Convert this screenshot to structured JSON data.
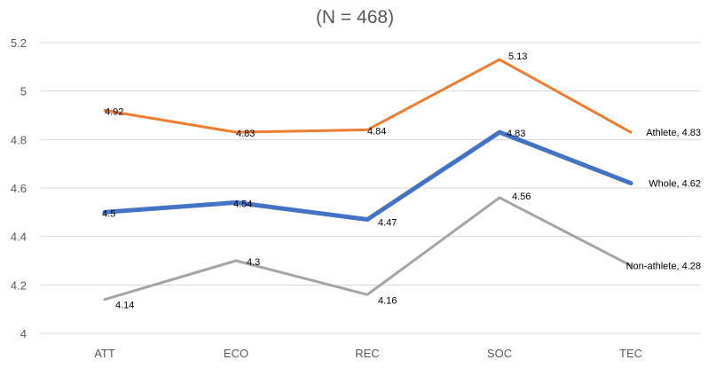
{
  "chart_data": {
    "type": "line",
    "title": "(N = 468)",
    "categories": [
      "ATT",
      "ECO",
      "REC",
      "SOC",
      "TEC"
    ],
    "ylim": [
      4,
      5.2
    ],
    "yticks": [
      4,
      4.2,
      4.4,
      4.6,
      4.8,
      5,
      5.2
    ],
    "ytick_labels": [
      "4",
      "4.2",
      "4.4",
      "4.6",
      "4.8",
      "5",
      "5.2"
    ],
    "grid": true,
    "xlabel": "",
    "ylabel": "",
    "series": [
      {
        "name": "Athlete",
        "color": "#ED7D31",
        "values": [
          4.92,
          4.83,
          4.84,
          5.13,
          4.83
        ],
        "labels": [
          "4.92",
          "4.83",
          "4.84",
          "5.13",
          "Athlete, 4.83"
        ]
      },
      {
        "name": "Whole",
        "color": "#4472C4",
        "values": [
          4.5,
          4.54,
          4.47,
          4.83,
          4.62
        ],
        "labels": [
          "4.5",
          "4.54",
          "4.47",
          "4.83",
          "Whole, 4.62"
        ]
      },
      {
        "name": "Non-athlete",
        "color": "#A5A5A5",
        "values": [
          4.14,
          4.3,
          4.16,
          4.56,
          4.28
        ],
        "labels": [
          "4.14",
          "4.3",
          "4.16",
          "4.56",
          "Non-athlete, 4.28"
        ]
      }
    ]
  }
}
